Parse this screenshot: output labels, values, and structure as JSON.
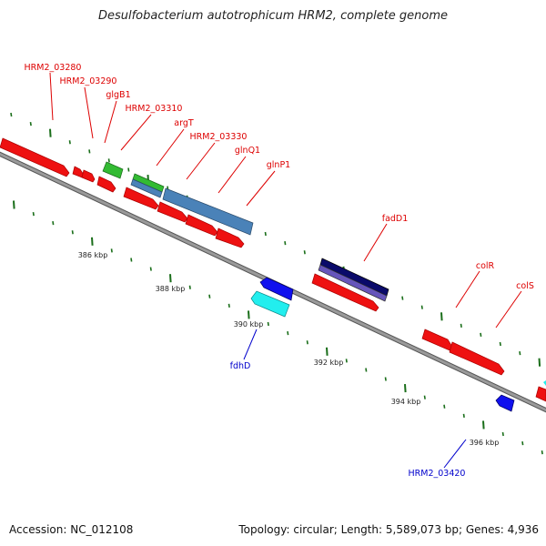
{
  "title": "Desulfobacterium autotrophicum HRM2, complete genome",
  "footer": {
    "accession": "Accession: NC_012108",
    "topology": "Topology: circular; Length: 5,589,073 bp; Genes: 4,936"
  },
  "colors": {
    "backbone": "#808080",
    "red_gene": "#ee1111",
    "green_gene": "#33bb33",
    "steel_gene": "#4a82b8",
    "navy_gene": "#0a0a6a",
    "purple_gene": "#6655bb",
    "blue_gene": "#1010ee",
    "cyan_gene": "#22eeee",
    "tick": "#1a6e1a",
    "label_red": "#dd0000",
    "label_blue": "#0000cc"
  },
  "scale_labels": [
    {
      "id": "386",
      "text": "386 kbp"
    },
    {
      "id": "388",
      "text": "388 kbp"
    },
    {
      "id": "390",
      "text": "390 kbp"
    },
    {
      "id": "392",
      "text": "392 kbp"
    },
    {
      "id": "394",
      "text": "394 kbp"
    },
    {
      "id": "396",
      "text": "396 kbp"
    }
  ],
  "gene_labels": [
    {
      "id": "hrm2-03280",
      "text": "HRM2_03280",
      "color": "red"
    },
    {
      "id": "hrm2-03290",
      "text": "HRM2_03290",
      "color": "red"
    },
    {
      "id": "glgb1",
      "text": "glgB1",
      "color": "red"
    },
    {
      "id": "hrm2-03310",
      "text": "HRM2_03310",
      "color": "red"
    },
    {
      "id": "argt",
      "text": "argT",
      "color": "red"
    },
    {
      "id": "hrm2-03330",
      "text": "HRM2_03330",
      "color": "red"
    },
    {
      "id": "glnq1",
      "text": "glnQ1",
      "color": "red"
    },
    {
      "id": "glnp1",
      "text": "glnP1",
      "color": "red"
    },
    {
      "id": "fadd1",
      "text": "fadD1",
      "color": "red"
    },
    {
      "id": "colr",
      "text": "colR",
      "color": "red"
    },
    {
      "id": "cols",
      "text": "colS",
      "color": "red"
    },
    {
      "id": "fdhd",
      "text": "fdhD",
      "color": "blue"
    },
    {
      "id": "hrm2-03420",
      "text": "HRM2_03420",
      "color": "blue"
    }
  ]
}
